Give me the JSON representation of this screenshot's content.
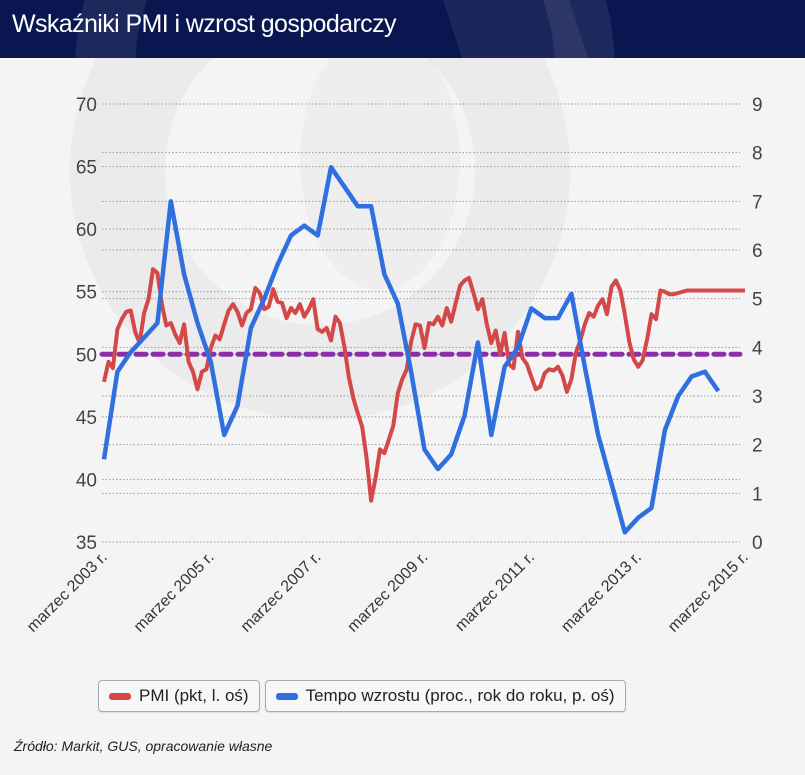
{
  "header": {
    "title": "Wskaźniki PMI i wzrost gospodarczy"
  },
  "source": "Źródło: Markit, GUS, opracowanie własne",
  "colors": {
    "header_bg": "#0a1650",
    "pmi": "#d44848",
    "gdp": "#2f6fe0",
    "threshold": "#8b2fa8"
  },
  "legend": [
    {
      "label": "PMI (pkt, l. oś)",
      "color": "#d44848"
    },
    {
      "label": "Tempo wzrostu (proc., rok do roku, p. oś)",
      "color": "#2f6fe0"
    }
  ],
  "chart_data": {
    "type": "line",
    "title": "Wskaźniki PMI i wzrost gospodarczy",
    "x_start": "2003-03",
    "x_end": "2015-03",
    "x_tick_labels": [
      "marzec 2003 r.",
      "marzec 2005 r.",
      "marzec 2007 r.",
      "marzec 2009 r.",
      "marzec 2011 r.",
      "marzec 2013 r.",
      "marzec 2015 r."
    ],
    "y_left": {
      "label": "PMI (pkt)",
      "ticks": [
        35,
        40,
        45,
        50,
        55,
        60,
        65,
        70
      ],
      "range": [
        35,
        70
      ]
    },
    "y_right": {
      "label": "Tempo wzrostu (proc., r/r)",
      "ticks": [
        0,
        1,
        2,
        3,
        4,
        5,
        6,
        7,
        8,
        9
      ],
      "range": [
        0,
        9
      ]
    },
    "grid": true,
    "legend_position": "bottom",
    "reference_line": {
      "axis": "left",
      "value": 50,
      "style": "dashed"
    },
    "series": [
      {
        "name": "PMI (pkt, l. oś)",
        "axis": "left",
        "x_months_from_start": [
          0,
          1,
          2,
          3,
          4,
          5,
          6,
          7,
          8,
          9,
          10,
          11,
          12,
          13,
          14,
          15,
          16,
          17,
          18,
          19,
          20,
          21,
          22,
          23,
          24,
          25,
          26,
          27,
          28,
          29,
          30,
          31,
          32,
          33,
          34,
          35,
          36,
          37,
          38,
          39,
          40,
          41,
          42,
          43,
          44,
          45,
          46,
          47,
          48,
          49,
          50,
          51,
          52,
          53,
          54,
          55,
          56,
          57,
          58,
          59,
          60,
          61,
          62,
          63,
          64,
          65,
          66,
          67,
          68,
          69,
          70,
          71,
          72,
          73,
          74,
          75,
          76,
          77,
          78,
          79,
          80,
          81,
          82,
          83,
          84,
          85,
          86,
          87,
          88,
          89,
          90,
          91,
          92,
          93,
          94,
          95,
          96,
          97,
          98,
          99,
          100,
          101,
          102,
          103,
          104,
          105,
          106,
          107,
          108,
          109,
          110,
          111,
          112,
          113,
          114,
          115,
          116,
          117,
          118,
          119,
          120,
          121,
          122,
          123,
          124,
          125,
          126,
          127,
          128,
          129,
          130,
          131,
          132,
          133,
          134,
          135,
          136,
          137,
          138,
          139,
          140,
          141,
          142,
          143,
          144
        ],
        "values": [
          47.8,
          49.4,
          48.9,
          52.0,
          52.8,
          53.4,
          53.5,
          51.8,
          50.9,
          53.3,
          54.4,
          56.8,
          56.5,
          54.0,
          52.3,
          52.5,
          51.6,
          50.9,
          52.4,
          49.4,
          48.6,
          47.2,
          48.6,
          48.8,
          50.5,
          51.5,
          51.2,
          52.4,
          53.5,
          54.0,
          53.4,
          52.3,
          53.3,
          53.6,
          55.3,
          54.9,
          53.6,
          53.8,
          55.2,
          54.2,
          54.1,
          52.9,
          53.7,
          53.3,
          54.0,
          53.0,
          53.6,
          54.4,
          52.0,
          51.8,
          52.1,
          51.1,
          53.0,
          52.5,
          50.6,
          48.2,
          46.5,
          45.3,
          44.2,
          41.7,
          38.3,
          40.1,
          42.4,
          42.1,
          43.2,
          44.3,
          46.9,
          48.0,
          48.8,
          51.0,
          52.4,
          52.3,
          50.5,
          52.5,
          52.4,
          53.0,
          52.3,
          53.7,
          52.6,
          54.1,
          55.5,
          55.9,
          56.1,
          54.9,
          53.6,
          54.4,
          52.4,
          50.9,
          51.9,
          50.0,
          51.7,
          49.2,
          48.9,
          51.8,
          49.7,
          49.2,
          48.2,
          47.2,
          47.4,
          48.5,
          48.8,
          48.7,
          49.0,
          48.3,
          47.0,
          48.0,
          50.1,
          51.1,
          52.4,
          53.3,
          53.0,
          53.9,
          54.4,
          53.2,
          55.4,
          55.9,
          55.1,
          53.2,
          51.0,
          49.6,
          49.0,
          49.5,
          51.2,
          53.2,
          52.8,
          55.1,
          55.0,
          54.8,
          54.8,
          54.9,
          55.0,
          55.1,
          55.1,
          55.1,
          55.1,
          55.1,
          55.1,
          55.1,
          55.1,
          55.1,
          55.1,
          55.1,
          55.1,
          55.1,
          55.1
        ]
      },
      {
        "name": "Tempo wzrostu (proc., rok do roku, p. oś)",
        "axis": "right",
        "x_months_from_start": [
          0,
          3,
          6,
          9,
          12,
          15,
          18,
          21,
          24,
          27,
          30,
          33,
          36,
          39,
          42,
          45,
          48,
          51,
          54,
          57,
          60,
          63,
          66,
          69,
          72,
          75,
          78,
          81,
          84,
          87,
          90,
          93,
          96,
          99,
          102,
          105,
          108,
          111,
          114,
          117,
          120,
          123,
          126,
          129,
          132,
          135,
          138
        ],
        "values": [
          1.7,
          3.5,
          3.9,
          4.2,
          4.5,
          7.0,
          5.5,
          4.5,
          3.7,
          2.2,
          2.8,
          4.4,
          5.0,
          5.7,
          6.3,
          6.5,
          6.3,
          7.7,
          7.3,
          6.9,
          6.9,
          5.5,
          4.9,
          3.5,
          1.9,
          1.5,
          1.8,
          2.6,
          4.1,
          2.2,
          3.6,
          4.0,
          4.8,
          4.6,
          4.6,
          5.1,
          3.6,
          2.2,
          1.2,
          0.2,
          0.5,
          0.7,
          2.3,
          3.0,
          3.4,
          3.5,
          3.1
        ]
      }
    ]
  }
}
